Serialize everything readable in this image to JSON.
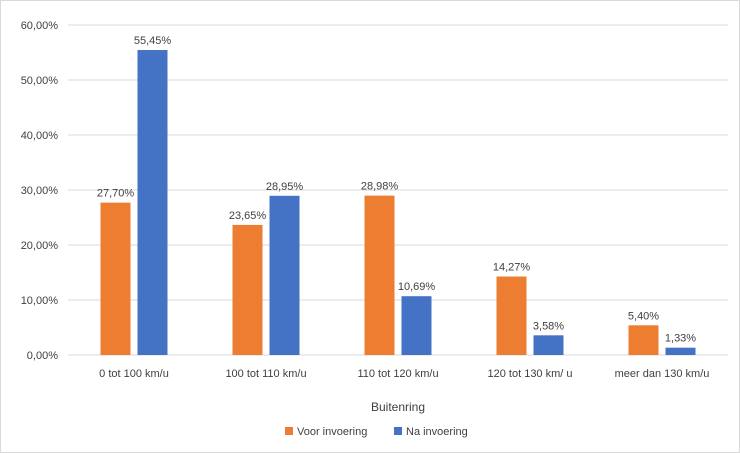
{
  "chart_data": {
    "type": "bar",
    "categories": [
      "0 tot  100 km/u",
      "100 tot 110 km/u",
      "110 tot 120 km/u",
      "120 tot 130 km/ u",
      "meer dan 130 km/u"
    ],
    "series": [
      {
        "name": "Voor invoering",
        "color": "#ed7d31",
        "values": [
          27.7,
          23.65,
          28.98,
          14.27,
          5.4
        ],
        "labels": [
          "27,70%",
          "23,65%",
          "28,98%",
          "14,27%",
          "5,40%"
        ]
      },
      {
        "name": "Na invoering",
        "color": "#4472c4",
        "values": [
          55.45,
          28.95,
          10.69,
          3.58,
          1.33
        ],
        "labels": [
          "55,45%",
          "28,95%",
          "10,69%",
          "3,58%",
          "1,33%"
        ]
      }
    ],
    "xlabel": "Buitenring",
    "ylabel": "",
    "ylim": [
      0,
      60
    ],
    "yticks": [
      "0,00%",
      "10,00%",
      "20,00%",
      "30,00%",
      "40,00%",
      "50,00%",
      "60,00%"
    ],
    "grid": true,
    "legend": "bottom",
    "gridColor": "#d9d9d9"
  }
}
